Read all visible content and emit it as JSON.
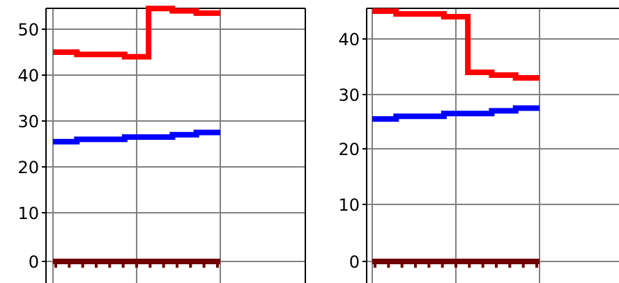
{
  "chart_data": [
    {
      "type": "line",
      "title": "",
      "xlabel": "",
      "ylabel": "",
      "ylim": [
        -2,
        58
      ],
      "yticks": [
        0,
        10,
        20,
        30,
        40,
        50
      ],
      "ytick_labels": [
        "0",
        "10",
        "20",
        "30",
        "40",
        "50"
      ],
      "grid": true,
      "vgrid_count": 3,
      "series": [
        {
          "color": "#ff0000",
          "step": true,
          "x": [
            0,
            1,
            2,
            3,
            4,
            5,
            6
          ],
          "values": [
            45,
            44.5,
            44.5,
            44,
            54.5,
            54,
            53.5
          ]
        },
        {
          "color": "#0000ff",
          "step": true,
          "x": [
            0,
            1,
            2,
            3,
            4,
            5,
            6
          ],
          "values": [
            25.5,
            26,
            26,
            26.5,
            26.5,
            27,
            27.5
          ]
        },
        {
          "color": "#700000",
          "step": true,
          "x": [
            0,
            1,
            2,
            3,
            4,
            5,
            6
          ],
          "values": [
            0,
            0,
            0,
            0,
            0,
            0,
            0
          ]
        }
      ]
    },
    {
      "type": "line",
      "title": "",
      "xlabel": "",
      "ylabel": "",
      "ylim": [
        -1,
        47
      ],
      "yticks": [
        0,
        10,
        20,
        30,
        40
      ],
      "ytick_labels": [
        "0",
        "10",
        "20",
        "30",
        "40"
      ],
      "grid": true,
      "vgrid_count": 3,
      "series": [
        {
          "color": "#ff0000",
          "step": true,
          "x": [
            0,
            1,
            2,
            3,
            4,
            5,
            6
          ],
          "values": [
            45,
            44.5,
            44.5,
            44,
            34,
            33.5,
            33
          ]
        },
        {
          "color": "#0000ff",
          "step": true,
          "x": [
            0,
            1,
            2,
            3,
            4,
            5,
            6
          ],
          "values": [
            25.5,
            26,
            26,
            26.5,
            26.5,
            27,
            27.5
          ]
        },
        {
          "color": "#700000",
          "step": true,
          "x": [
            0,
            1,
            2,
            3,
            4,
            5,
            6
          ],
          "values": [
            0,
            0,
            0,
            0,
            0,
            0,
            0
          ]
        }
      ]
    }
  ]
}
